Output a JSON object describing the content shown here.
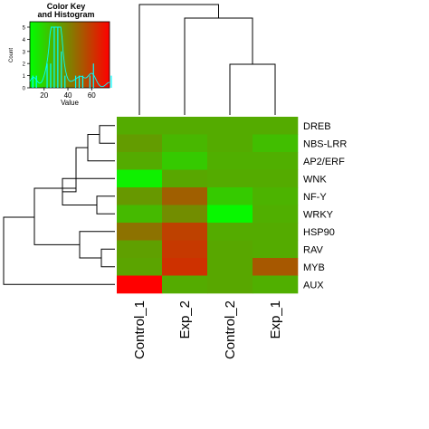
{
  "chart_data": {
    "type": "heatmap",
    "rows": [
      "DREB",
      "NBS-LRR",
      "AP2/ERF",
      "WNK",
      "NF-Y",
      "WRKY",
      "HSP90",
      "RAV",
      "MYB",
      "AUX"
    ],
    "columns": [
      "Control_1",
      "Exp_2",
      "Control_2",
      "Exp_1"
    ],
    "values": [
      [
        30,
        30,
        30,
        30
      ],
      [
        34,
        27,
        30,
        25
      ],
      [
        30,
        22,
        29,
        29
      ],
      [
        12,
        31,
        30,
        30
      ],
      [
        35,
        50,
        22,
        28
      ],
      [
        26,
        38,
        10,
        29
      ],
      [
        45,
        58,
        30,
        30
      ],
      [
        33,
        60,
        31,
        30
      ],
      [
        32,
        62,
        31,
        52
      ],
      [
        75,
        30,
        31,
        29
      ]
    ],
    "color_key": {
      "title": "Color Key\nand Histogram",
      "title_lines": [
        "Color Key",
        "and Histogram"
      ],
      "xlabel": "Value",
      "ylabel": "Count",
      "x_ticks": [
        "20",
        "40",
        "60"
      ],
      "y_ticks": [
        "0",
        "1",
        "2",
        "3",
        "4",
        "5"
      ],
      "xlim": [
        8,
        75
      ],
      "ylim": [
        0,
        5
      ],
      "low_color": "#00ff00",
      "high_color": "#ff0000"
    },
    "row_dendrogram": true,
    "column_dendrogram": true
  }
}
